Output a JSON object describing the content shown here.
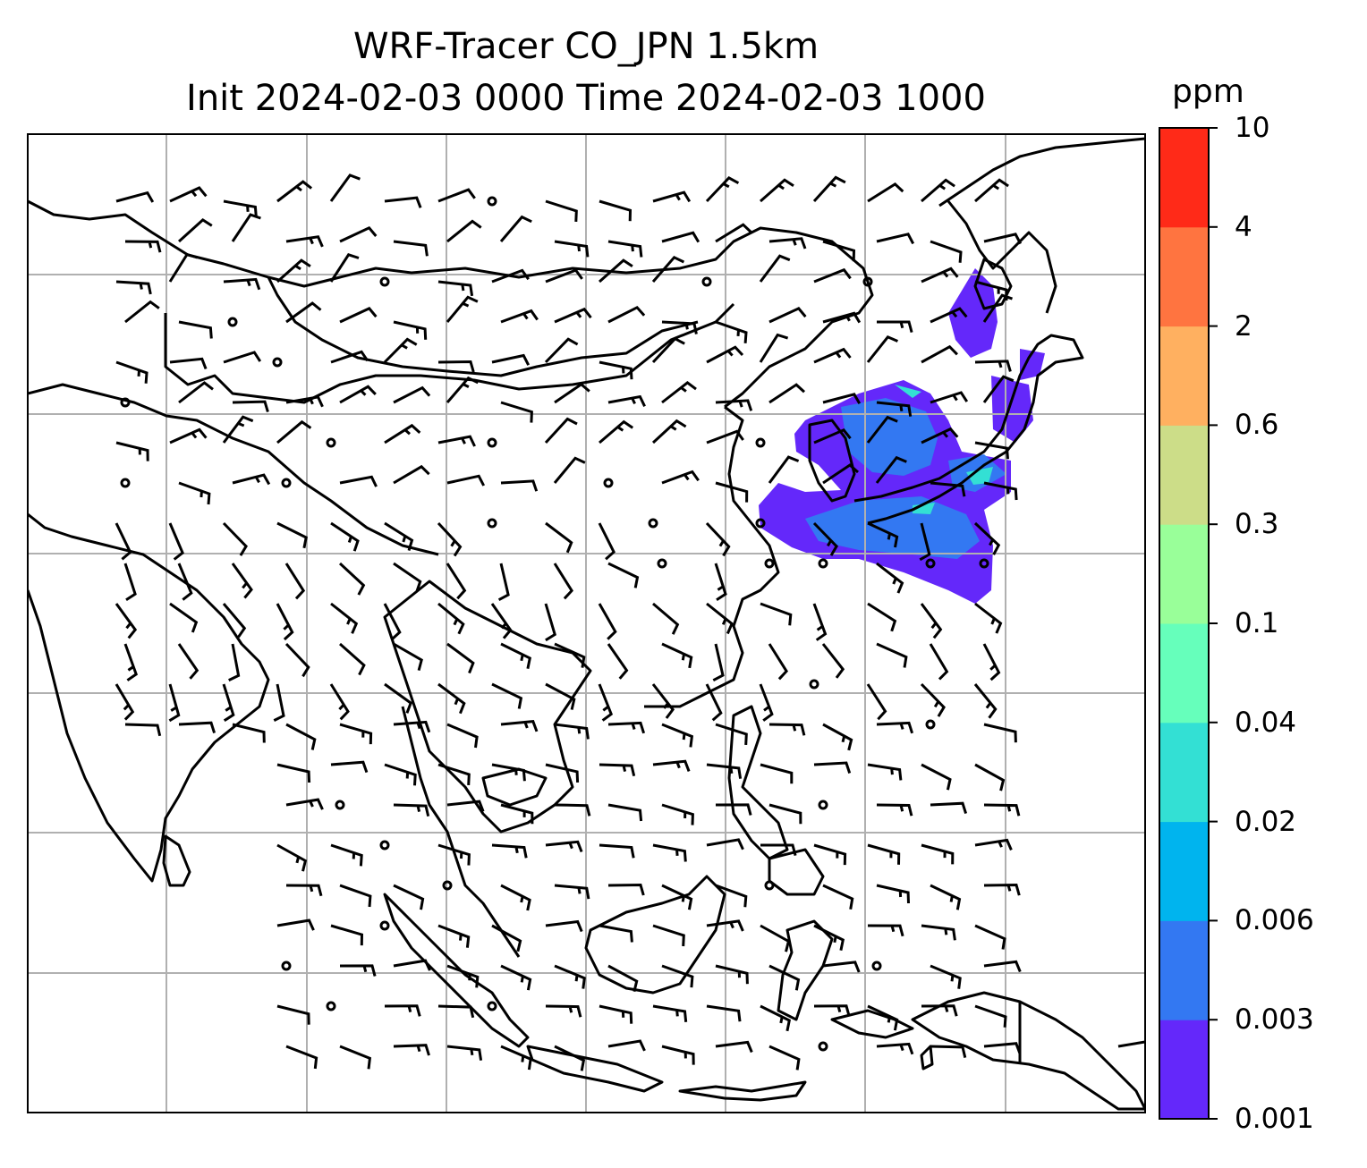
{
  "title": {
    "line1": "WRF-Tracer CO_JPN 1.5km",
    "line2": "Init 2024-02-03 0000 Time 2024-02-03 1000"
  },
  "colorbar": {
    "unit": "ppm",
    "levels": [
      "0.001",
      "0.003",
      "0.006",
      "0.02",
      "0.04",
      "0.1",
      "0.3",
      "0.6",
      "2",
      "4",
      "10"
    ],
    "colors": [
      "#6428fa",
      "#3378f2",
      "#00b4ee",
      "#33e0d4",
      "#66ffbb",
      "#99ff99",
      "#ccdd88",
      "#ffb060",
      "#ff7440",
      "#ff2a18"
    ]
  },
  "map": {
    "projection_grid": true,
    "land_outline_color": "#000000",
    "grid_color": "#b0b0b0"
  }
}
